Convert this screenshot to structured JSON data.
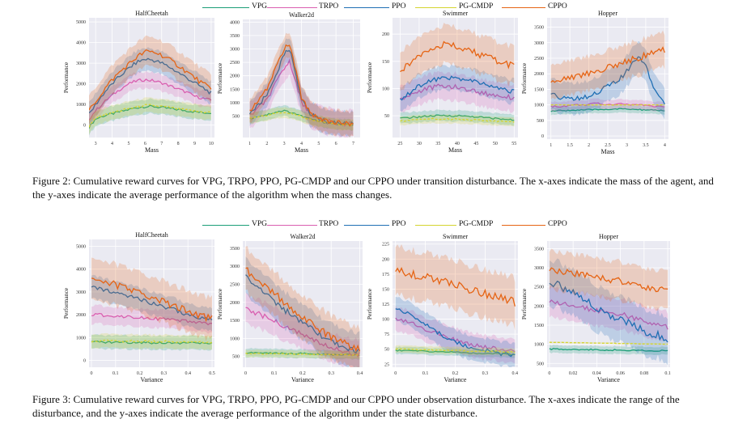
{
  "colors": {
    "VPG": "#1b9e77",
    "TRPO": "#d95fb0",
    "PPO": "#1f6fb4",
    "PG-CMDP": "#d4d430",
    "CPPO": "#e66414",
    "panel_bg": "#eaeaf2",
    "grid": "#ffffff"
  },
  "figures": [
    {
      "id": "fig2",
      "legend": [
        "VPG",
        "TRPO",
        "PPO",
        "PG-CMDP",
        "CPPO"
      ],
      "caption": "Figure 2: Cumulative reward curves for VPG, TRPO, PPO, PG-CMDP and our CPPO under transition disturbance. The x-axes indicate the mass of the agent, and the y-axes indicate the average performance of the algorithm when the mass changes."
    },
    {
      "id": "fig3",
      "legend": [
        "VPG",
        "TRPO",
        "PPO",
        "PG-CMDP",
        "CPPO"
      ],
      "caption": "Figure 3: Cumulative reward curves for VPG, TRPO, PPO, PG-CMDP and our CPPO under observation disturbance. The x-axes indicate the range of the disturbance, and the y-axes indicate the average performance of the algorithm under the state disturbance."
    }
  ],
  "chart_data": [
    {
      "figure": "fig2",
      "type": "line",
      "title": "HalfCheetah",
      "xlabel": "Mass",
      "ylabel": "Performance",
      "xlim": [
        2.6,
        10.2
      ],
      "ylim": [
        -600,
        5200
      ],
      "xticks": [
        3,
        4,
        5,
        6,
        7,
        8,
        9,
        10
      ],
      "yticks": [
        0,
        1000,
        2000,
        3000,
        4000,
        5000
      ],
      "x": [
        2.6,
        3,
        3.5,
        4,
        4.5,
        5,
        5.5,
        6,
        6.5,
        7,
        7.5,
        8,
        8.5,
        9,
        9.5,
        10
      ],
      "series": [
        {
          "name": "VPG",
          "values": [
            -100,
            300,
            450,
            550,
            650,
            750,
            850,
            900,
            900,
            850,
            800,
            750,
            700,
            650,
            600,
            600
          ],
          "band": 350
        },
        {
          "name": "TRPO",
          "values": [
            300,
            700,
            1100,
            1450,
            1750,
            2000,
            2150,
            2200,
            2150,
            2050,
            1900,
            1750,
            1600,
            1400,
            1300,
            1200
          ],
          "band": 400
        },
        {
          "name": "PPO",
          "values": [
            500,
            1000,
            1550,
            2000,
            2400,
            2750,
            3050,
            3200,
            3150,
            3000,
            2800,
            2550,
            2300,
            2050,
            1800,
            1550
          ],
          "band": 550
        },
        {
          "name": "PG-CMDP",
          "values": [
            -100,
            350,
            500,
            600,
            700,
            800,
            880,
            950,
            950,
            900,
            850,
            780,
            720,
            680,
            640,
            620
          ],
          "band": 350
        },
        {
          "name": "CPPO",
          "values": [
            700,
            1150,
            1700,
            2200,
            2600,
            2950,
            3300,
            3550,
            3550,
            3400,
            3150,
            2900,
            2600,
            2300,
            2000,
            1750
          ],
          "band": 700
        }
      ]
    },
    {
      "figure": "fig2",
      "type": "line",
      "title": "Walker2d",
      "xlabel": "Mass",
      "ylabel": "Performance",
      "xlim": [
        0.6,
        7.4
      ],
      "ylim": [
        -300,
        4100
      ],
      "xticks": [
        1,
        2,
        3,
        4,
        5,
        6,
        7
      ],
      "yticks": [
        500,
        1000,
        1500,
        2000,
        2500,
        3000,
        3500,
        4000
      ],
      "x": [
        1,
        1.5,
        2,
        2.5,
        3,
        3.3,
        3.6,
        4,
        4.5,
        5,
        5.5,
        6,
        6.5,
        7
      ],
      "series": [
        {
          "name": "VPG",
          "values": [
            400,
            500,
            550,
            650,
            700,
            650,
            600,
            500,
            400,
            300,
            250,
            200,
            180,
            150
          ],
          "band": 200
        },
        {
          "name": "TRPO",
          "values": [
            500,
            800,
            1100,
            1700,
            2300,
            2500,
            2000,
            1000,
            600,
            400,
            300,
            250,
            220,
            200
          ],
          "band": 500
        },
        {
          "name": "PPO",
          "values": [
            600,
            900,
            1300,
            2000,
            2800,
            3000,
            2300,
            1100,
            600,
            400,
            300,
            250,
            220,
            200
          ],
          "band": 450
        },
        {
          "name": "PG-CMDP",
          "values": [
            400,
            480,
            520,
            600,
            650,
            620,
            560,
            480,
            380,
            300,
            250,
            200,
            180,
            150
          ],
          "band": 200
        },
        {
          "name": "CPPO",
          "values": [
            700,
            1050,
            1500,
            2300,
            3000,
            3200,
            2400,
            1200,
            650,
            420,
            320,
            260,
            230,
            210
          ],
          "band": 450
        }
      ]
    },
    {
      "figure": "fig2",
      "type": "line",
      "title": "Swimmer",
      "xlabel": "Mass",
      "ylabel": "Performance",
      "xlim": [
        23,
        56
      ],
      "ylim": [
        10,
        230
      ],
      "xticks": [
        25,
        30,
        35,
        40,
        45,
        50,
        55
      ],
      "yticks": [
        50,
        100,
        150,
        200
      ],
      "x": [
        25,
        28,
        30,
        32,
        35,
        38,
        40,
        43,
        45,
        48,
        50,
        53,
        55
      ],
      "series": [
        {
          "name": "VPG",
          "values": [
            45,
            47,
            48,
            49,
            50,
            50,
            50,
            49,
            48,
            46,
            45,
            43,
            42
          ],
          "band": 10
        },
        {
          "name": "TRPO",
          "values": [
            80,
            90,
            95,
            100,
            104,
            104,
            102,
            98,
            95,
            90,
            88,
            85,
            83
          ],
          "band": 25
        },
        {
          "name": "PPO",
          "values": [
            80,
            95,
            105,
            112,
            118,
            120,
            118,
            115,
            112,
            106,
            102,
            97,
            94
          ],
          "band": 22
        },
        {
          "name": "PG-CMDP",
          "values": [
            40,
            42,
            43,
            44,
            44,
            44,
            44,
            43,
            42,
            41,
            40,
            39,
            38
          ],
          "band": 8
        },
        {
          "name": "CPPO",
          "values": [
            130,
            150,
            162,
            172,
            180,
            180,
            176,
            170,
            165,
            157,
            152,
            145,
            140
          ],
          "band": 35
        }
      ]
    },
    {
      "figure": "fig2",
      "type": "line",
      "title": "Hopper",
      "xlabel": "Mass",
      "ylabel": "Performance",
      "xlim": [
        0.9,
        4.1
      ],
      "ylim": [
        -100,
        3800
      ],
      "xticks": [
        1.0,
        1.5,
        2.0,
        2.5,
        3.0,
        3.5,
        4.0
      ],
      "yticks": [
        0,
        500,
        1000,
        1500,
        2000,
        2500,
        3000,
        3500
      ],
      "x": [
        1.0,
        1.3,
        1.6,
        1.9,
        2.2,
        2.5,
        2.8,
        3.1,
        3.3,
        3.5,
        3.7,
        3.9,
        4.0
      ],
      "series": [
        {
          "name": "VPG",
          "values": [
            800,
            820,
            830,
            840,
            850,
            860,
            870,
            860,
            850,
            840,
            830,
            820,
            820
          ],
          "band": 120
        },
        {
          "name": "TRPO",
          "values": [
            950,
            950,
            1000,
            1000,
            1050,
            1000,
            1050,
            1000,
            1000,
            1000,
            950,
            950,
            950
          ],
          "band": 150
        },
        {
          "name": "PPO",
          "values": [
            1300,
            1250,
            1200,
            1250,
            1400,
            1600,
            1800,
            2200,
            2600,
            2300,
            1600,
            1200,
            1100
          ],
          "band": 500
        },
        {
          "name": "PG-CMDP",
          "values": [
            1000,
            1000,
            1000,
            1000,
            1000,
            1000,
            1000,
            1000,
            1000,
            1000,
            1000,
            1000,
            1000
          ],
          "band": 20
        },
        {
          "name": "CPPO",
          "values": [
            1700,
            1800,
            1900,
            2000,
            2100,
            2200,
            2300,
            2450,
            2500,
            2600,
            2700,
            2800,
            2700
          ],
          "band": 550
        }
      ]
    },
    {
      "figure": "fig3",
      "type": "line",
      "title": "HalfCheetah",
      "xlabel": "Variance",
      "ylabel": "Performance",
      "xlim": [
        -0.01,
        0.51
      ],
      "ylim": [
        -300,
        5300
      ],
      "xticks": [
        0.0,
        0.1,
        0.2,
        0.3,
        0.4,
        0.5
      ],
      "yticks": [
        0,
        1000,
        2000,
        3000,
        4000,
        5000
      ],
      "x": [
        0.0,
        0.05,
        0.1,
        0.15,
        0.2,
        0.25,
        0.3,
        0.35,
        0.4,
        0.45,
        0.5
      ],
      "series": [
        {
          "name": "VPG",
          "values": [
            800,
            800,
            800,
            790,
            790,
            780,
            780,
            770,
            760,
            750,
            750
          ],
          "band": 300
        },
        {
          "name": "TRPO",
          "values": [
            2000,
            1980,
            1950,
            1920,
            1900,
            1850,
            1800,
            1750,
            1700,
            1650,
            1600
          ],
          "band": 400
        },
        {
          "name": "PPO",
          "values": [
            3200,
            3100,
            3000,
            2850,
            2700,
            2500,
            2350,
            2200,
            2000,
            1850,
            1750
          ],
          "band": 500
        },
        {
          "name": "PG-CMDP",
          "values": [
            850,
            850,
            840,
            840,
            830,
            820,
            820,
            810,
            800,
            800,
            790
          ],
          "band": 300
        },
        {
          "name": "CPPO",
          "values": [
            3550,
            3450,
            3300,
            3150,
            2950,
            2750,
            2550,
            2350,
            2150,
            1950,
            1800
          ],
          "band": 900
        }
      ]
    },
    {
      "figure": "fig3",
      "type": "line",
      "title": "Walker2d",
      "xlabel": "Variance",
      "ylabel": "Performance",
      "xlim": [
        -0.01,
        0.41
      ],
      "ylim": [
        200,
        3700
      ],
      "xticks": [
        0.0,
        0.1,
        0.2,
        0.3,
        0.4
      ],
      "yticks": [
        500,
        1000,
        1500,
        2000,
        2500,
        3000,
        3500
      ],
      "x": [
        0.0,
        0.04,
        0.08,
        0.12,
        0.16,
        0.2,
        0.24,
        0.28,
        0.32,
        0.36,
        0.4
      ],
      "series": [
        {
          "name": "VPG",
          "values": [
            600,
            600,
            590,
            590,
            580,
            580,
            570,
            560,
            550,
            550,
            540
          ],
          "band": 120
        },
        {
          "name": "TRPO",
          "values": [
            1800,
            1700,
            1550,
            1400,
            1250,
            1100,
            950,
            800,
            700,
            620,
            560
          ],
          "band": 400
        },
        {
          "name": "PPO",
          "values": [
            2700,
            2450,
            2200,
            1900,
            1650,
            1400,
            1200,
            1000,
            850,
            720,
            620
          ],
          "band": 500
        },
        {
          "name": "PG-CMDP",
          "values": [
            580,
            580,
            575,
            570,
            565,
            560,
            555,
            550,
            545,
            540,
            535
          ],
          "band": 100
        },
        {
          "name": "CPPO",
          "values": [
            2900,
            2650,
            2400,
            2100,
            1850,
            1600,
            1350,
            1150,
            950,
            800,
            680
          ],
          "band": 600
        }
      ]
    },
    {
      "figure": "fig3",
      "type": "line",
      "title": "Swimmer",
      "xlabel": "Variance",
      "ylabel": "Performance",
      "xlim": [
        -0.01,
        0.41
      ],
      "ylim": [
        20,
        230
      ],
      "xticks": [
        0.0,
        0.1,
        0.2,
        0.3,
        0.4
      ],
      "yticks": [
        25,
        50,
        75,
        100,
        125,
        150,
        175,
        200,
        225
      ],
      "x": [
        0.0,
        0.04,
        0.08,
        0.12,
        0.16,
        0.2,
        0.24,
        0.28,
        0.32,
        0.36,
        0.4
      ],
      "series": [
        {
          "name": "VPG",
          "values": [
            48,
            48,
            47,
            46,
            46,
            45,
            44,
            43,
            43,
            42,
            41
          ],
          "band": 6
        },
        {
          "name": "TRPO",
          "values": [
            100,
            95,
            88,
            80,
            72,
            65,
            60,
            55,
            52,
            48,
            45
          ],
          "band": 20
        },
        {
          "name": "PPO",
          "values": [
            120,
            110,
            97,
            85,
            72,
            62,
            55,
            50,
            46,
            42,
            40
          ],
          "band": 20
        },
        {
          "name": "PG-CMDP",
          "values": [
            50,
            50,
            49,
            49,
            48,
            48,
            47,
            47,
            46,
            46,
            45
          ],
          "band": 6
        },
        {
          "name": "CPPO",
          "values": [
            180,
            177,
            172,
            167,
            162,
            156,
            151,
            146,
            140,
            134,
            128
          ],
          "band": 40
        }
      ]
    },
    {
      "figure": "fig3",
      "type": "line",
      "title": "Hopper",
      "xlabel": "Variance",
      "ylabel": "Performance",
      "xlim": [
        -0.002,
        0.102
      ],
      "ylim": [
        400,
        3700
      ],
      "xticks": [
        0.0,
        0.02,
        0.04,
        0.06,
        0.08,
        0.1
      ],
      "yticks": [
        500,
        1000,
        1500,
        2000,
        2500,
        3000,
        3500
      ],
      "x": [
        0.0,
        0.01,
        0.02,
        0.03,
        0.04,
        0.05,
        0.06,
        0.07,
        0.08,
        0.09,
        0.1
      ],
      "series": [
        {
          "name": "VPG",
          "values": [
            880,
            870,
            870,
            860,
            860,
            850,
            850,
            840,
            840,
            830,
            830
          ],
          "band": 100
        },
        {
          "name": "TRPO",
          "values": [
            2100,
            2050,
            2000,
            1950,
            1900,
            1850,
            1800,
            1700,
            1600,
            1500,
            1450
          ],
          "band": 400
        },
        {
          "name": "PPO",
          "values": [
            2650,
            2500,
            2350,
            2150,
            1950,
            1800,
            1650,
            1500,
            1350,
            1250,
            1150
          ],
          "band": 600
        },
        {
          "name": "PG-CMDP",
          "values": [
            1050,
            1050,
            1040,
            1040,
            1030,
            1030,
            1020,
            1020,
            1010,
            1010,
            1000
          ],
          "band": 20
        },
        {
          "name": "CPPO",
          "values": [
            2950,
            2900,
            2850,
            2800,
            2750,
            2700,
            2650,
            2600,
            2500,
            2450,
            2400
          ],
          "band": 500
        }
      ]
    }
  ]
}
